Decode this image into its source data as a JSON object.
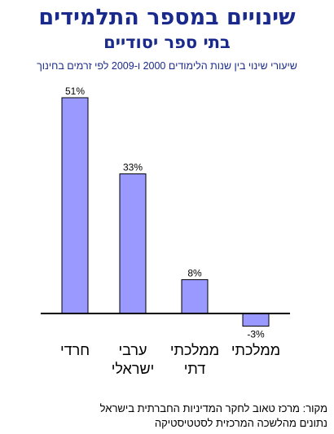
{
  "header": {
    "title": "שינויים במספר התלמידים",
    "subtitle": "בתי ספר יסודיים"
  },
  "chart_caption": "שיעורי שינוי בין שנות הלימודים 2000 ו-2009 לפי זרמים בחינוך",
  "chart_data": {
    "type": "bar",
    "categories": [
      [
        "חרדי"
      ],
      [
        "ערבי",
        "ישראלי"
      ],
      [
        "ממלכתי",
        "דתי"
      ],
      [
        "ממלכתי"
      ]
    ],
    "values": [
      51,
      33,
      8,
      -3
    ],
    "value_labels": [
      "51%",
      "33%",
      "8%",
      "-3%"
    ],
    "ylim": [
      -4,
      53
    ],
    "grid": false,
    "legend": "none",
    "bar_color": "#9999ff",
    "bar_edge_color": "#000000"
  },
  "footer": {
    "source_line1": "מקור: מרכז טאוב לחקר המדיניות החברתית בישראל",
    "source_line2": "נתונים מהלשכה המרכזית לסטטיסטיקה"
  },
  "colors": {
    "title": "#1a2a8c",
    "bar_fill": "#9999ff"
  }
}
